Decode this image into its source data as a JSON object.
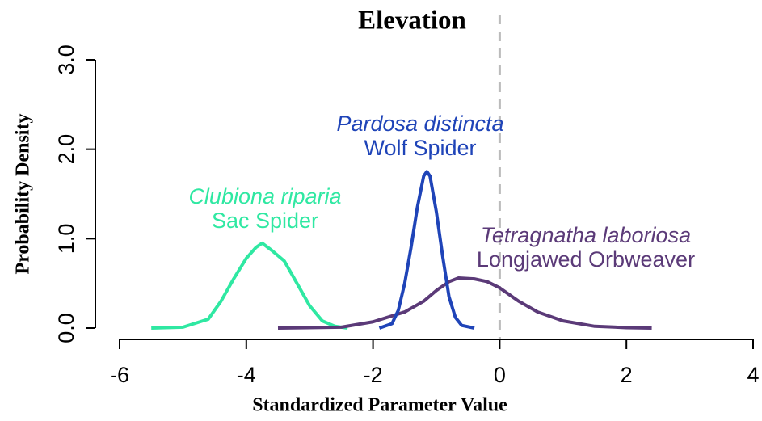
{
  "chart_data": {
    "type": "line",
    "title": "Elevation",
    "xlabel": "Standardized Parameter Value",
    "ylabel": "Probability Density",
    "xlim": [
      -6,
      4
    ],
    "xticks": [
      -6,
      -4,
      -2,
      0,
      2,
      4
    ],
    "ylim": [
      0,
      3
    ],
    "yticks": [
      {
        "value": 0,
        "label": "0.0"
      },
      {
        "value": 1,
        "label": "1.0"
      },
      {
        "value": 2,
        "label": "2.0"
      },
      {
        "value": 3,
        "label": "3.0"
      }
    ],
    "vline": 0,
    "vline_color": "#bbbbbb",
    "series": [
      {
        "name": "Sac Spider",
        "species": "Clubiona riparia",
        "color": "#2fe8a2",
        "x": [
          -5.5,
          -5.0,
          -4.6,
          -4.4,
          -4.2,
          -4.0,
          -3.85,
          -3.75,
          -3.6,
          -3.4,
          -3.2,
          -3.0,
          -2.8,
          -2.6,
          -2.4
        ],
        "values": [
          0,
          0.01,
          0.1,
          0.3,
          0.55,
          0.78,
          0.9,
          0.95,
          0.87,
          0.75,
          0.5,
          0.25,
          0.08,
          0.02,
          0
        ]
      },
      {
        "name": "Longjawed Orbweaver",
        "species": "Tetragnatha laboriosa",
        "color": "#5b3a78",
        "x": [
          -3.5,
          -2.5,
          -2.0,
          -1.5,
          -1.2,
          -1.0,
          -0.8,
          -0.65,
          -0.4,
          -0.2,
          0,
          0.3,
          0.6,
          1.0,
          1.5,
          2.0,
          2.4
        ],
        "values": [
          0,
          0.01,
          0.07,
          0.18,
          0.3,
          0.42,
          0.52,
          0.56,
          0.55,
          0.52,
          0.45,
          0.3,
          0.18,
          0.08,
          0.02,
          0.005,
          0
        ]
      },
      {
        "name": "Wolf Spider",
        "species": "Pardosa distincta",
        "color": "#1f44b8",
        "x": [
          -1.9,
          -1.7,
          -1.6,
          -1.5,
          -1.4,
          -1.3,
          -1.2,
          -1.15,
          -1.1,
          -1.0,
          -0.9,
          -0.8,
          -0.7,
          -0.6,
          -0.4
        ],
        "values": [
          0,
          0.05,
          0.2,
          0.5,
          0.9,
          1.35,
          1.7,
          1.75,
          1.7,
          1.3,
          0.8,
          0.35,
          0.12,
          0.03,
          0
        ]
      }
    ]
  }
}
